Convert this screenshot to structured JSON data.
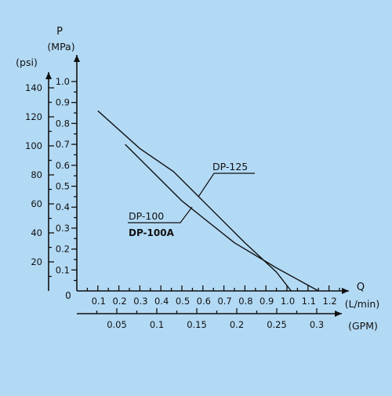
{
  "chart_data": {
    "type": "line",
    "title": "",
    "axes": {
      "y_mpa": {
        "symbol": "P",
        "unit_label": "(MPa)",
        "ticks": [
          "0.1",
          "0.2",
          "0.3",
          "0.4",
          "0.5",
          "0.6",
          "0.7",
          "0.8",
          "0.9",
          "1.0"
        ],
        "ylim": [
          0,
          1.0
        ]
      },
      "y_psi": {
        "unit_label": "(psi)",
        "ticks": [
          "20",
          "40",
          "60",
          "80",
          "100",
          "120",
          "140"
        ],
        "ylim": [
          0,
          145
        ]
      },
      "x_lmin": {
        "symbol": "Q",
        "unit_label": "(L/min)",
        "ticks": [
          "0.1",
          "0.2",
          "0.3",
          "0.4",
          "0.5",
          "0.6",
          "0.7",
          "0.8",
          "0.9",
          "1.0",
          "1.1",
          "1.2"
        ],
        "xlim": [
          0,
          1.2
        ]
      },
      "x_gpm": {
        "unit_label": "(GPM)",
        "ticks": [
          "0.05",
          "0.1",
          "0.15",
          "0.2",
          "0.25",
          "0.3"
        ],
        "xlim": [
          0,
          0.32
        ]
      },
      "origin_label": "0"
    },
    "series": [
      {
        "name": "DP-125",
        "x": [
          0.1,
          0.3,
          0.46,
          0.6,
          0.8,
          0.95,
          1.02
        ],
        "y": [
          0.86,
          0.68,
          0.57,
          0.43,
          0.23,
          0.09,
          0.0
        ]
      },
      {
        "name": "DP-100",
        "name2": "DP-100A",
        "x": [
          0.23,
          0.5,
          0.75,
          0.95,
          1.15
        ],
        "y": [
          0.7,
          0.43,
          0.23,
          0.11,
          0.0
        ]
      }
    ],
    "grid": false,
    "legend": "callout labels on curves"
  }
}
